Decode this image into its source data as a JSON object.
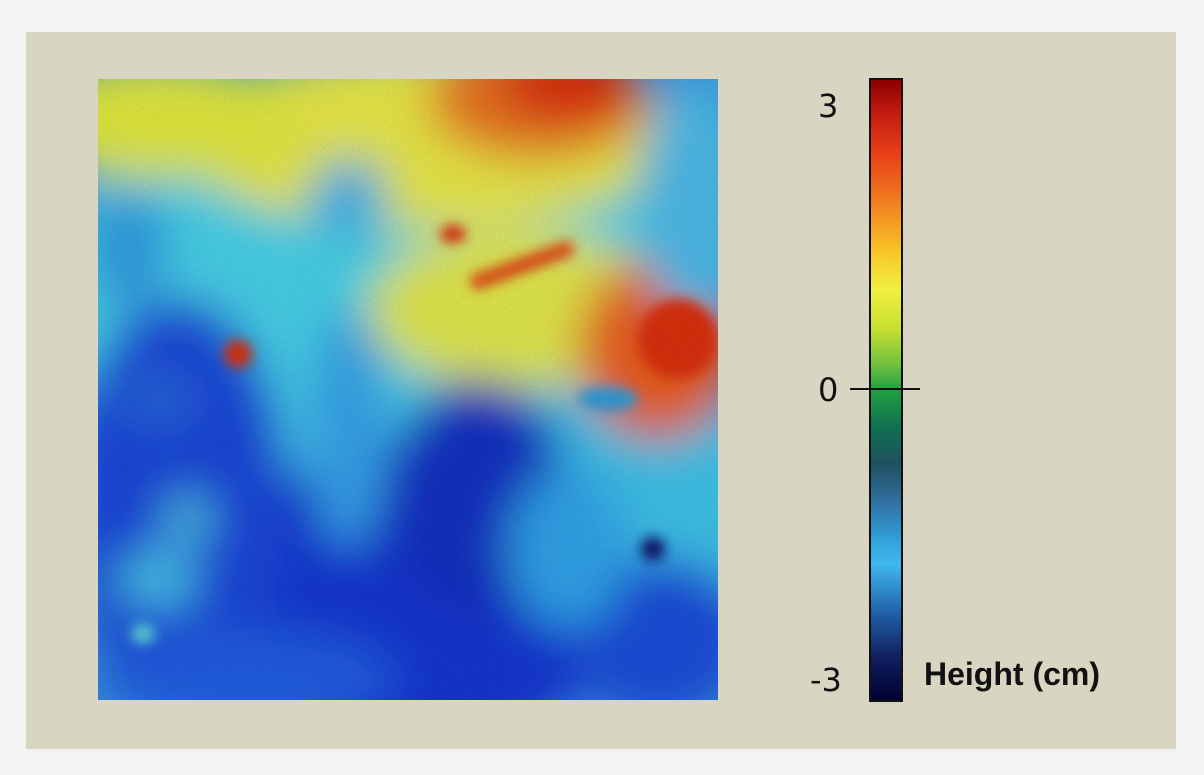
{
  "colorbar": {
    "title": "Height (cm)",
    "ticks": [
      "3",
      "0",
      "-3"
    ],
    "min": -3,
    "max": 3,
    "colors": [
      "#000030",
      "#2060a8",
      "#40b8f0",
      "#20a040",
      "#f0f040",
      "#f08020",
      "#8b0000"
    ]
  },
  "background_color": "#d8d6c2"
}
